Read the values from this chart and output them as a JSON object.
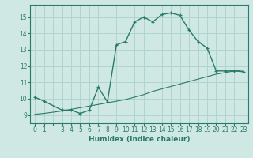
{
  "xlabel": "Humidex (Indice chaleur)",
  "ylabel": "",
  "background_color": "#cfe8e4",
  "grid_color": "#b0d4ce",
  "line_color": "#2a7a6a",
  "xlim": [
    -0.5,
    23.5
  ],
  "ylim": [
    8.5,
    15.75
  ],
  "xticks": [
    0,
    1,
    3,
    4,
    5,
    6,
    7,
    8,
    9,
    10,
    11,
    12,
    13,
    14,
    15,
    16,
    17,
    18,
    19,
    20,
    21,
    22,
    23
  ],
  "yticks": [
    9,
    10,
    11,
    12,
    13,
    14,
    15
  ],
  "curve1_x": [
    0,
    1,
    3,
    4,
    5,
    6,
    7,
    8,
    9,
    10,
    11,
    12,
    13,
    14,
    15,
    16,
    17,
    18,
    19,
    20,
    21,
    22,
    23
  ],
  "curve1_y": [
    10.1,
    9.85,
    9.3,
    9.3,
    9.1,
    9.3,
    10.7,
    9.8,
    13.3,
    13.5,
    14.7,
    15.0,
    14.7,
    15.15,
    15.25,
    15.1,
    14.2,
    13.5,
    13.1,
    11.7,
    11.7,
    11.7,
    11.65
  ],
  "curve2_x": [
    0,
    1,
    3,
    4,
    5,
    6,
    7,
    8,
    9,
    10,
    11,
    12,
    13,
    14,
    15,
    16,
    17,
    18,
    19,
    20,
    21,
    22,
    23
  ],
  "curve2_y": [
    9.05,
    9.1,
    9.25,
    9.35,
    9.45,
    9.55,
    9.65,
    9.75,
    9.85,
    9.95,
    10.1,
    10.25,
    10.45,
    10.6,
    10.75,
    10.9,
    11.05,
    11.2,
    11.35,
    11.5,
    11.6,
    11.7,
    11.75
  ]
}
